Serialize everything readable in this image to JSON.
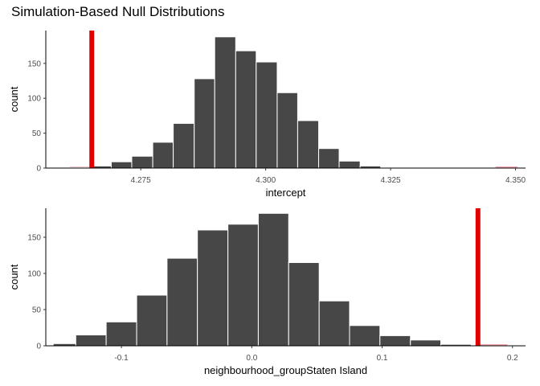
{
  "title": "Simulation-Based Null Distributions",
  "colors": {
    "bar_fill": "#474747",
    "bar_stroke": "#ffffff",
    "shade": "#f4a6b0",
    "observed_line": "#e00000",
    "axis": "#000000"
  },
  "chart_data": [
    {
      "type": "bar",
      "subtype": "histogram",
      "xlabel": "intercept",
      "ylabel": "count",
      "xlim": [
        4.256,
        4.352
      ],
      "ylim": [
        0,
        197
      ],
      "xticks": [
        4.275,
        4.3,
        4.325,
        4.35
      ],
      "xtick_labels": [
        "4.275",
        "4.300",
        "4.325",
        "4.350"
      ],
      "yticks": [
        0,
        50,
        100,
        150
      ],
      "ytick_labels": [
        "0",
        "50",
        "100",
        "150"
      ],
      "bins": [
        {
          "x0": 4.2608,
          "x1": 4.2649,
          "count": 1
        },
        {
          "x0": 4.2649,
          "x1": 4.2691,
          "count": 3
        },
        {
          "x0": 4.2691,
          "x1": 4.2732,
          "count": 9
        },
        {
          "x0": 4.2732,
          "x1": 4.2774,
          "count": 17
        },
        {
          "x0": 4.2774,
          "x1": 4.2815,
          "count": 37
        },
        {
          "x0": 4.2815,
          "x1": 4.2857,
          "count": 64
        },
        {
          "x0": 4.2857,
          "x1": 4.2898,
          "count": 128
        },
        {
          "x0": 4.2898,
          "x1": 4.294,
          "count": 188
        },
        {
          "x0": 4.294,
          "x1": 4.2981,
          "count": 168
        },
        {
          "x0": 4.2981,
          "x1": 4.3023,
          "count": 152
        },
        {
          "x0": 4.3023,
          "x1": 4.3064,
          "count": 108
        },
        {
          "x0": 4.3064,
          "x1": 4.3106,
          "count": 68
        },
        {
          "x0": 4.3106,
          "x1": 4.3147,
          "count": 28
        },
        {
          "x0": 4.3147,
          "x1": 4.3189,
          "count": 10
        },
        {
          "x0": 4.3189,
          "x1": 4.323,
          "count": 3
        }
      ],
      "observed_value": 4.2652,
      "shade_regions": [
        [
          4.2608,
          4.2652
        ],
        [
          4.346,
          4.3504
        ]
      ]
    },
    {
      "type": "bar",
      "subtype": "histogram",
      "xlabel": "neighbourhood_groupStaten Island",
      "ylabel": "count",
      "xlim": [
        -0.158,
        0.21
      ],
      "ylim": [
        0,
        190
      ],
      "xticks": [
        -0.1,
        0.0,
        0.1,
        0.2
      ],
      "xtick_labels": [
        "-0.1",
        "0.0",
        "0.1",
        "0.2"
      ],
      "yticks": [
        0,
        50,
        100,
        150
      ],
      "ytick_labels": [
        "0",
        "50",
        "100",
        "150"
      ],
      "bins": [
        {
          "x0": -0.1523,
          "x1": -0.135,
          "count": 3
        },
        {
          "x0": -0.135,
          "x1": -0.1117,
          "count": 15
        },
        {
          "x0": -0.1117,
          "x1": -0.0883,
          "count": 33
        },
        {
          "x0": -0.0883,
          "x1": -0.065,
          "count": 70
        },
        {
          "x0": -0.065,
          "x1": -0.0417,
          "count": 121
        },
        {
          "x0": -0.0417,
          "x1": -0.0183,
          "count": 160
        },
        {
          "x0": -0.0183,
          "x1": 0.005,
          "count": 168
        },
        {
          "x0": 0.005,
          "x1": 0.0283,
          "count": 183
        },
        {
          "x0": 0.0283,
          "x1": 0.0517,
          "count": 115
        },
        {
          "x0": 0.0517,
          "x1": 0.075,
          "count": 62
        },
        {
          "x0": 0.075,
          "x1": 0.0983,
          "count": 28
        },
        {
          "x0": 0.0983,
          "x1": 0.1217,
          "count": 14
        },
        {
          "x0": 0.1217,
          "x1": 0.145,
          "count": 8
        },
        {
          "x0": 0.145,
          "x1": 0.1683,
          "count": 2
        }
      ],
      "observed_value": 0.1735,
      "shade_regions": [
        [
          -0.1523,
          -0.1345
        ],
        [
          0.1735,
          0.196
        ]
      ]
    }
  ]
}
